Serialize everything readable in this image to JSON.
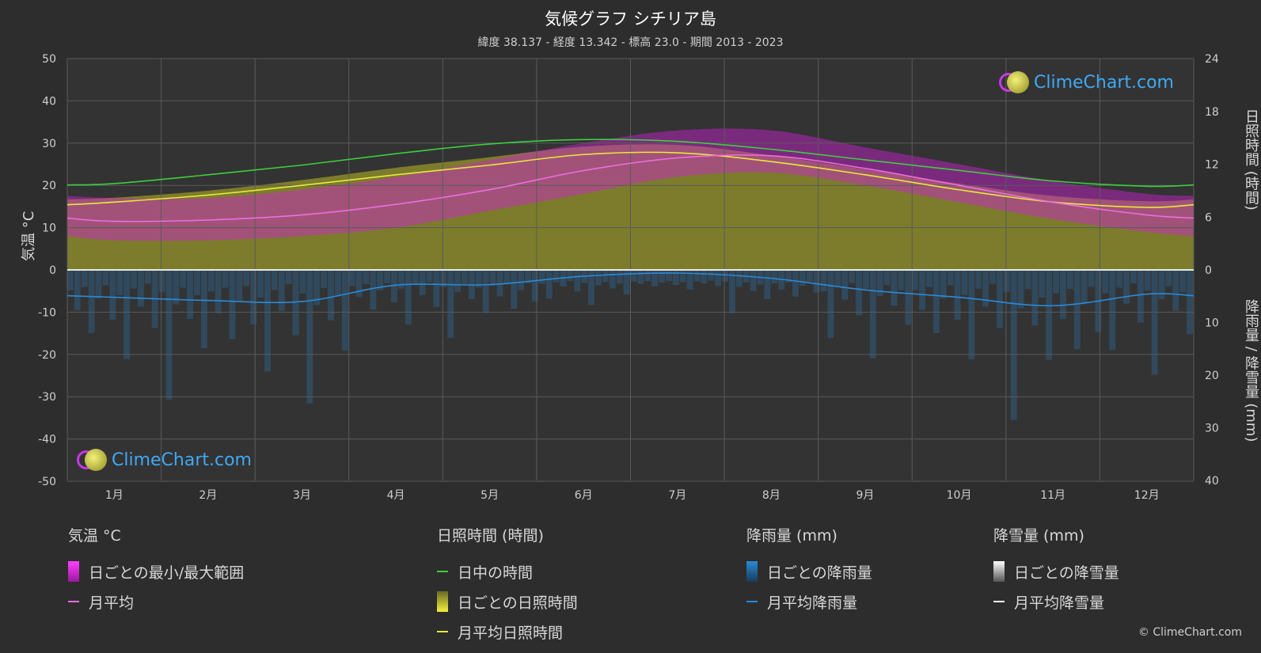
{
  "title": "気候グラフ シチリア島",
  "subtitle": "緯度 38.137 - 経度 13.342 - 標高 23.0 - 期間 2013 - 2023",
  "axis_left_title": "気温 °C",
  "axis_right_top_title": "日照時間 (時間)",
  "axis_right_bottom_title": "降雨量 / 降雪量 (mm)",
  "logo_text": "ClimeChart.com",
  "copyright": "© ClimeChart.com",
  "colors": {
    "daylight": "#3ccf3c",
    "sunshine_avg": "#e8e83a",
    "temp_avg": "#ef6ce0",
    "temp_range": "#d020d8",
    "sunshine_fill": "#8a8a2c",
    "rain": "#2a8ad8",
    "snow": "#ffffff"
  },
  "legend": {
    "temperature": {
      "header": "気温 °C",
      "range": "日ごとの最小/最大範囲",
      "avg": "月平均"
    },
    "sunshine": {
      "header": "日照時間 (時間)",
      "daylight": "日中の時間",
      "daily": "日ごとの日照時間",
      "avg": "月平均日照時間"
    },
    "rain": {
      "header": "降雨量 (mm)",
      "daily": "日ごとの降雨量",
      "avg": "月平均降雨量"
    },
    "snow": {
      "header": "降雪量 (mm)",
      "daily": "日ごとの降雪量",
      "avg": "月平均降雪量"
    }
  },
  "chart_data": {
    "type": "line",
    "categories": [
      "1月",
      "2月",
      "3月",
      "4月",
      "5月",
      "6月",
      "7月",
      "8月",
      "9月",
      "10月",
      "11月",
      "12月"
    ],
    "y_left": {
      "label": "気温 °C",
      "ylim": [
        -50,
        50
      ],
      "ticks": [
        50,
        40,
        30,
        20,
        10,
        0,
        -10,
        -20,
        -30,
        -40,
        -50
      ]
    },
    "y_right_top": {
      "label": "日照時間 (時間)",
      "ylim": [
        0,
        24
      ],
      "ticks": [
        24,
        18,
        12,
        6,
        0
      ]
    },
    "y_right_bottom": {
      "label": "降雨量 / 降雪量 (mm)",
      "ylim": [
        0,
        40
      ],
      "ticks": [
        0,
        10,
        20,
        30,
        40
      ]
    },
    "series": [
      {
        "name": "日中の時間",
        "axis": "hours",
        "values": [
          9.8,
          10.8,
          11.9,
          13.2,
          14.3,
          14.8,
          14.6,
          13.7,
          12.5,
          11.3,
          10.1,
          9.5
        ]
      },
      {
        "name": "月平均日照時間",
        "axis": "hours",
        "values": [
          7.7,
          8.5,
          9.6,
          10.8,
          11.9,
          13.1,
          13.3,
          12.3,
          10.8,
          9.1,
          7.7,
          7.1
        ]
      },
      {
        "name": "月平均",
        "axis": "temp",
        "values": [
          11.5,
          11.8,
          13.0,
          15.5,
          19.0,
          23.5,
          26.5,
          27.0,
          24.0,
          20.0,
          16.0,
          13.0
        ]
      },
      {
        "name": "月平均降雨量",
        "axis": "mm",
        "values": [
          5.2,
          5.8,
          6.0,
          2.9,
          2.8,
          1.2,
          0.6,
          1.6,
          3.8,
          5.2,
          6.8,
          4.6
        ]
      },
      {
        "name": "月平均降雪量",
        "axis": "mm",
        "values": [
          0,
          0,
          0,
          0,
          0,
          0,
          0,
          0,
          0,
          0,
          0,
          0
        ]
      }
    ],
    "daily_temp_range": {
      "min": [
        7,
        7,
        8,
        10,
        14,
        18,
        22,
        23,
        20,
        16,
        12,
        9
      ],
      "max": [
        17,
        17,
        19,
        22,
        26,
        30,
        33,
        33,
        29,
        25,
        21,
        18
      ]
    },
    "daily_sunshine_hours": [
      8.2,
      9.0,
      10.2,
      11.6,
      12.8,
      14.0,
      14.2,
      13.0,
      11.4,
      9.8,
      8.4,
      7.8
    ],
    "grid": true
  }
}
